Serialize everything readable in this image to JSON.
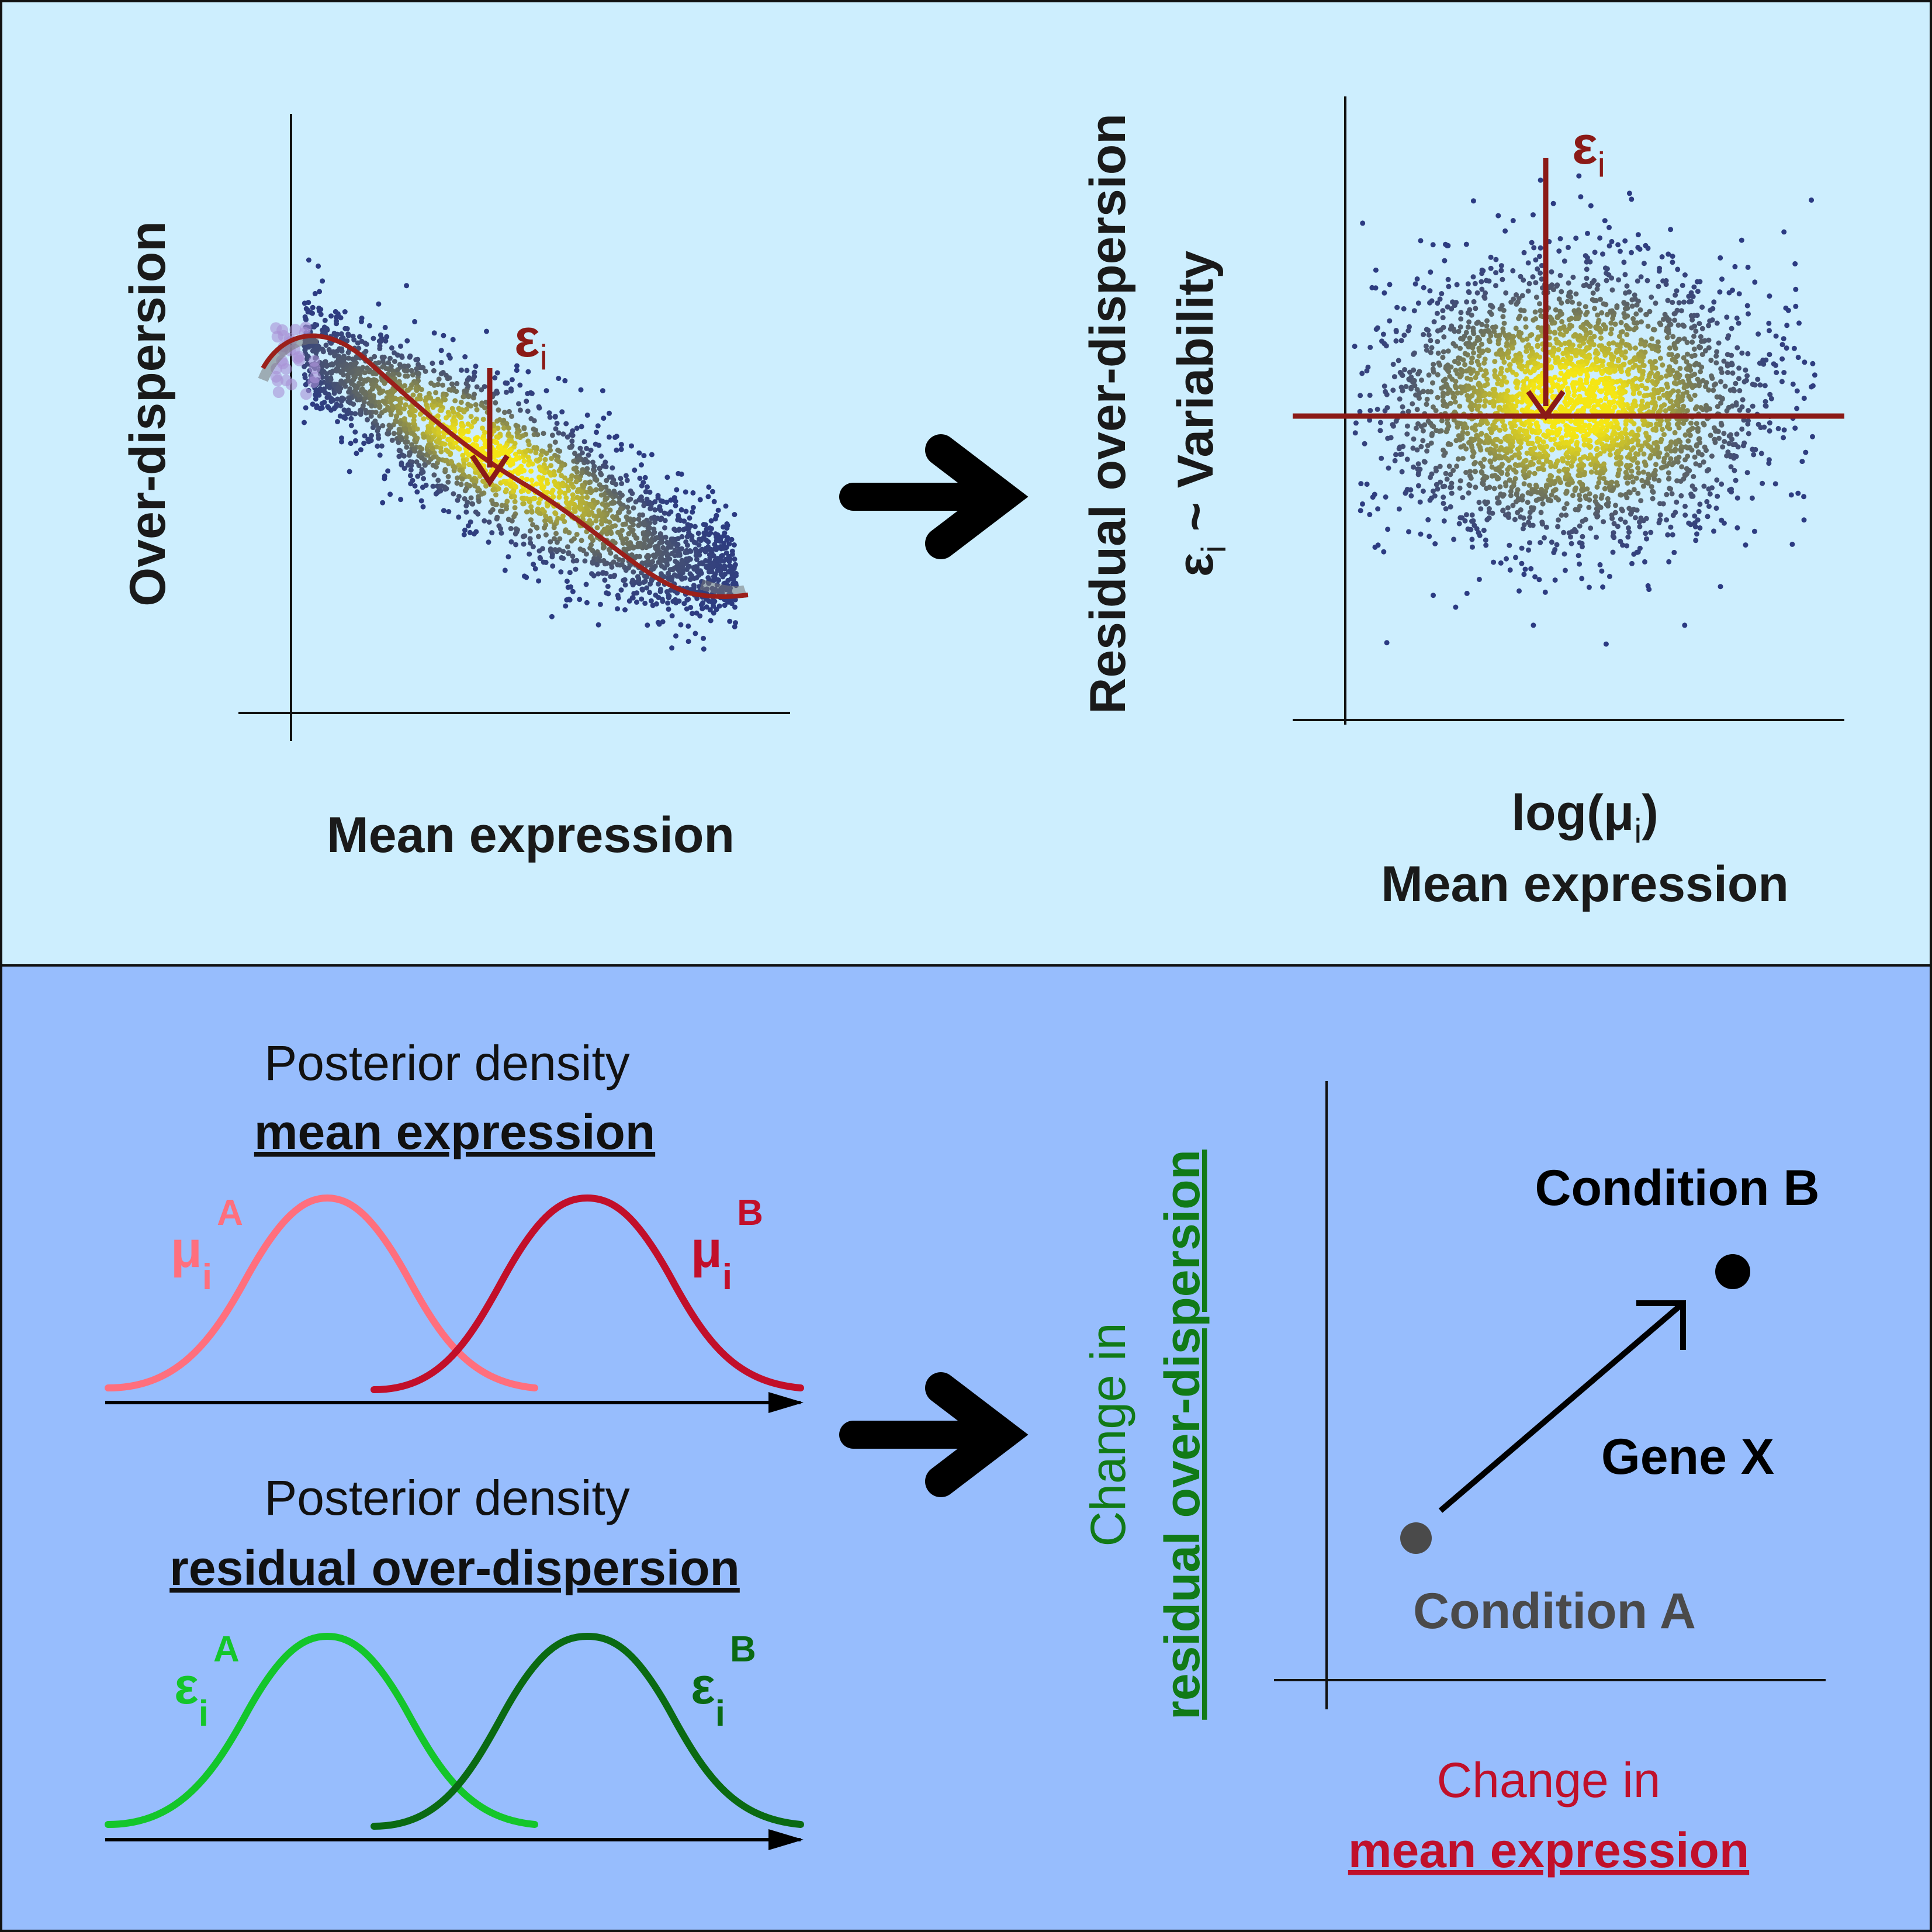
{
  "colors": {
    "top_panel_bg": "#cdeefe",
    "bottom_panel_bg": "#97bdfd",
    "border": "#111111",
    "dark_red": "#8b1a17",
    "fit_curve": "#9b1f1a",
    "density_low": "#2b3a82",
    "density_high": "#f5e614",
    "pink": "#ff6f7d",
    "crimson": "#c20f2a",
    "light_green": "#14c62a",
    "dark_green": "#0a6a12",
    "grey_point": "#4a4a4a",
    "label_red": "#c0102a",
    "label_green": "#117a17"
  },
  "top_left_plot": {
    "y_label": "Over-dispersion",
    "x_label": "Mean expression",
    "annotation_symbol": "ε",
    "annotation_subscript": "i"
  },
  "top_right_plot": {
    "y_label_line1": "Residual over-dispersion",
    "y_label_eps": "ε",
    "y_label_sub": "i",
    "y_label_rest": " ~ Variability",
    "x_label_line1_prefix": "log(μ",
    "x_label_line1_sub": "i",
    "x_label_line1_suffix": ")",
    "x_label_line2": "Mean expression",
    "annotation_symbol": "ε",
    "annotation_subscript": "i"
  },
  "bottom_left": {
    "mean_section": {
      "title": "Posterior density",
      "subtitle": "mean expression",
      "curve_a": {
        "symbol": "μ",
        "sub": "i",
        "sup": "A"
      },
      "curve_b": {
        "symbol": "μ",
        "sub": "i",
        "sup": "B"
      }
    },
    "dispersion_section": {
      "title": "Posterior density",
      "subtitle": "residual over-dispersion",
      "curve_a": {
        "symbol": "ε",
        "sub": "i",
        "sup": "A"
      },
      "curve_b": {
        "symbol": "ε",
        "sub": "i",
        "sup": "B"
      }
    }
  },
  "bottom_right_plot": {
    "y_label_line1": "Change in",
    "y_label_line2": "residual over-dispersion",
    "x_label_line1": "Change in",
    "x_label_line2": "mean expression",
    "condition_a": "Condition A",
    "condition_b": "Condition B",
    "gene_label": "Gene X"
  }
}
